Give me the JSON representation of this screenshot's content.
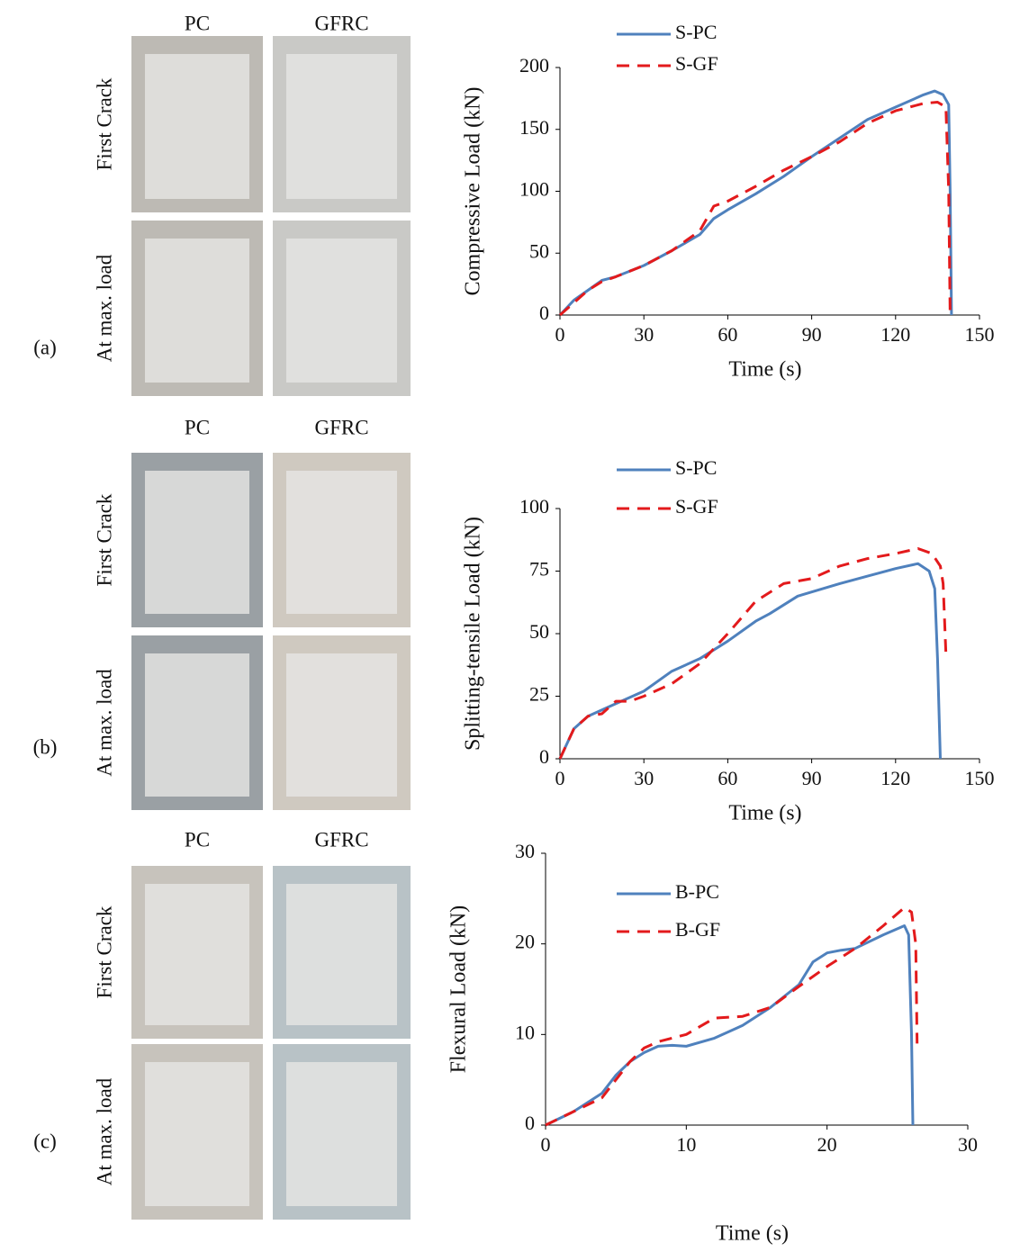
{
  "panels": [
    {
      "label": "(a)",
      "columns": [
        "PC",
        "GFRC"
      ],
      "rows": [
        "First Crack",
        "At max. load"
      ]
    },
    {
      "label": "(b)",
      "columns": [
        "PC",
        "GFRC"
      ],
      "rows": [
        "First Crack",
        "At max. load"
      ]
    },
    {
      "label": "(c)",
      "columns": [
        "PC",
        "GFRC"
      ],
      "rows": [
        "First Crack",
        "At max. load"
      ]
    }
  ],
  "chart_data": [
    {
      "type": "line",
      "x_label": "Time (s)",
      "y_label": "Compressive Load (kN)",
      "xlim": [
        0,
        150
      ],
      "xticks": [
        0,
        30,
        60,
        90,
        120,
        150
      ],
      "ylim": [
        0,
        200
      ],
      "yticks": [
        0,
        50,
        100,
        150,
        200
      ],
      "series": [
        {
          "name": "S-PC",
          "color": "#4f81bd",
          "style": "solid",
          "x": [
            0,
            5,
            10,
            15,
            20,
            30,
            40,
            50,
            55,
            60,
            70,
            80,
            90,
            100,
            110,
            120,
            130,
            134,
            137,
            139,
            139.5,
            140
          ],
          "values": [
            0,
            12,
            20,
            28,
            31,
            40,
            52,
            65,
            78,
            85,
            98,
            112,
            128,
            143,
            158,
            168,
            178,
            181,
            178,
            170,
            100,
            0
          ]
        },
        {
          "name": "S-GF",
          "color": "#e31a1c",
          "style": "dashed",
          "x": [
            0,
            5,
            10,
            15,
            20,
            30,
            40,
            50,
            55,
            60,
            70,
            80,
            90,
            100,
            110,
            120,
            130,
            135,
            138,
            139,
            139.5
          ],
          "values": [
            0,
            10,
            20,
            27,
            31,
            40,
            52,
            68,
            88,
            92,
            104,
            117,
            128,
            140,
            155,
            165,
            171,
            172,
            168,
            100,
            0
          ]
        }
      ]
    },
    {
      "type": "line",
      "x_label": "Time (s)",
      "y_label": "Splitting-tensile Load (kN)",
      "xlim": [
        0,
        150
      ],
      "xticks": [
        0,
        30,
        60,
        90,
        120,
        150
      ],
      "ylim": [
        0,
        100
      ],
      "yticks": [
        0,
        25,
        50,
        75,
        100
      ],
      "series": [
        {
          "name": "S-PC",
          "color": "#4f81bd",
          "style": "solid",
          "x": [
            0,
            5,
            10,
            20,
            30,
            40,
            50,
            60,
            70,
            75,
            85,
            100,
            110,
            120,
            128,
            132,
            134,
            135,
            136
          ],
          "values": [
            0,
            12,
            17,
            22,
            27,
            35,
            40,
            47,
            55,
            58,
            65,
            70,
            73,
            76,
            78,
            75,
            68,
            40,
            0
          ]
        },
        {
          "name": "S-GF",
          "color": "#e31a1c",
          "style": "dashed",
          "x": [
            0,
            5,
            10,
            15,
            20,
            25,
            30,
            40,
            50,
            60,
            70,
            80,
            90,
            100,
            110,
            120,
            128,
            133,
            136,
            137,
            138
          ],
          "values": [
            0,
            12,
            17,
            18,
            23,
            23,
            25,
            30,
            38,
            50,
            63,
            70,
            72,
            77,
            80,
            82,
            84,
            82,
            77,
            70,
            42
          ]
        }
      ]
    },
    {
      "type": "line",
      "x_label": "Time (s)",
      "y_label": "Flexural Load (kN)",
      "xlim": [
        0,
        30
      ],
      "xticks": [
        0,
        10,
        20,
        30
      ],
      "ylim": [
        0,
        30
      ],
      "yticks": [
        0,
        10,
        20,
        30
      ],
      "series": [
        {
          "name": "B-PC",
          "color": "#4f81bd",
          "style": "solid",
          "x": [
            0,
            2,
            4,
            5,
            6,
            7,
            8,
            9,
            10,
            12,
            14,
            16,
            18,
            19,
            20,
            21,
            22,
            24,
            25.5,
            25.8,
            26,
            26.1
          ],
          "values": [
            0,
            1.5,
            3.5,
            5.5,
            7,
            8,
            8.7,
            8.8,
            8.7,
            9.6,
            11,
            13,
            15.5,
            18,
            19,
            19.3,
            19.5,
            21,
            22,
            21,
            10,
            0
          ]
        },
        {
          "name": "B-GF",
          "color": "#e31a1c",
          "style": "dashed",
          "x": [
            0,
            2,
            4,
            6,
            7,
            8,
            10,
            12,
            14,
            16,
            18,
            20,
            22,
            24,
            25.5,
            26,
            26.3,
            26.4
          ],
          "values": [
            0,
            1.5,
            3,
            7,
            8.5,
            9.2,
            10,
            11.8,
            12,
            13,
            15.3,
            17.5,
            19.5,
            22,
            24,
            23.5,
            20,
            9
          ]
        }
      ]
    }
  ]
}
